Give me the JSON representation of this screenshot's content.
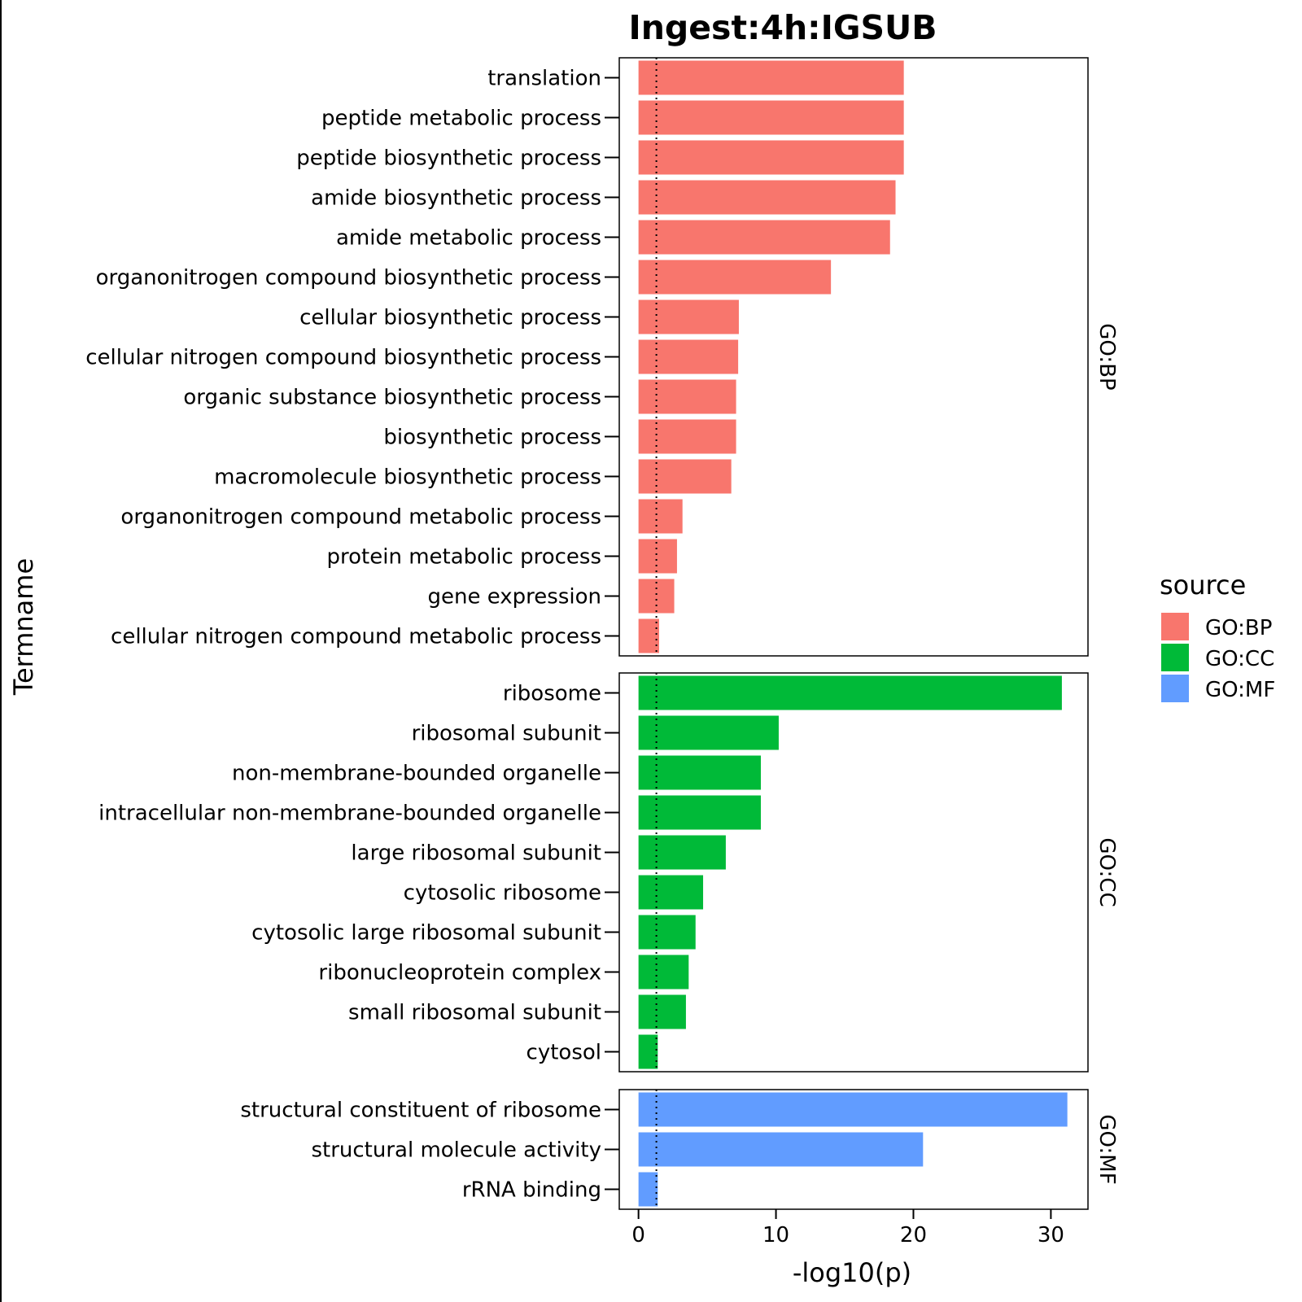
{
  "chart_data": {
    "type": "bar",
    "orientation": "horizontal",
    "title": "Ingest:4h:IGSUB",
    "xlabel": "-log10(p)",
    "ylabel": "Termname",
    "xlim": [
      -1.4,
      32.7
    ],
    "xticks": [
      0,
      10,
      20,
      30
    ],
    "reference_line": 1.3,
    "legend": {
      "title": "source",
      "position": "right",
      "entries": [
        {
          "label": "GO:BP",
          "color": "#F8766D"
        },
        {
          "label": "GO:CC",
          "color": "#00BA38"
        },
        {
          "label": "GO:MF",
          "color": "#619CFF"
        }
      ]
    },
    "panels": [
      {
        "strip": "GO:BP",
        "color": "#F8766D",
        "categories": [
          "translation",
          "peptide metabolic process",
          "peptide biosynthetic process",
          "amide biosynthetic process",
          "amide metabolic process",
          "organonitrogen compound biosynthetic process",
          "cellular biosynthetic process",
          "cellular nitrogen compound biosynthetic process",
          "organic substance biosynthetic process",
          "biosynthetic process",
          "macromolecule biosynthetic process",
          "organonitrogen compound metabolic process",
          "protein metabolic process",
          "gene expression",
          "cellular nitrogen compound metabolic process"
        ],
        "values": [
          19.3,
          19.3,
          19.3,
          18.7,
          18.3,
          14.0,
          7.3,
          7.25,
          7.1,
          7.1,
          6.75,
          3.2,
          2.8,
          2.6,
          1.5
        ]
      },
      {
        "strip": "GO:CC",
        "color": "#00BA38",
        "categories": [
          "ribosome",
          "ribosomal subunit",
          "non-membrane-bounded organelle",
          "intracellular non-membrane-bounded organelle",
          "large ribosomal subunit",
          "cytosolic ribosome",
          "cytosolic large ribosomal subunit",
          "ribonucleoprotein complex",
          "small ribosomal subunit",
          "cytosol"
        ],
        "values": [
          30.8,
          10.2,
          8.9,
          8.9,
          6.35,
          4.7,
          4.15,
          3.65,
          3.45,
          1.4
        ]
      },
      {
        "strip": "GO:MF",
        "color": "#619CFF",
        "categories": [
          "structural constituent of ribosome",
          "structural molecule activity",
          "rRNA binding"
        ],
        "values": [
          31.2,
          20.7,
          1.4
        ]
      }
    ]
  }
}
